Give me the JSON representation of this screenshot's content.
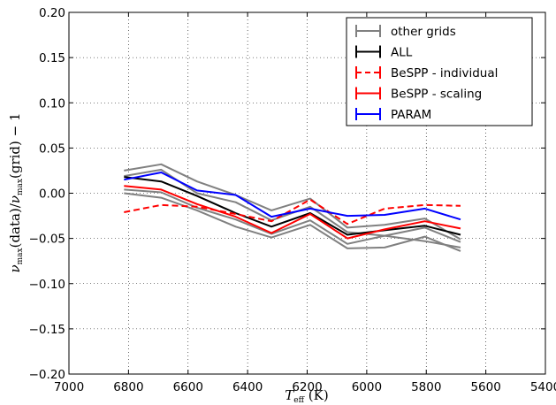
{
  "chart_data": {
    "type": "line",
    "title": "",
    "xlabel": "T_eff (K)",
    "ylabel": "ν_max(data)/ν_max(grid) − 1",
    "xlim": [
      7000,
      5400
    ],
    "ylim": [
      -0.2,
      0.2
    ],
    "x_inverted": true,
    "grid": true,
    "grid_style": "dotted",
    "legend_position": "top-right",
    "xticks": [
      7000,
      6800,
      6600,
      6400,
      6200,
      6000,
      5800,
      5600,
      5400
    ],
    "xtick_labels": [
      "7000",
      "6800",
      "6600",
      "6400",
      "6200",
      "6000",
      "5800",
      "5600",
      "5400"
    ],
    "yticks": [
      -0.2,
      -0.15,
      -0.1,
      -0.05,
      0.0,
      0.05,
      0.1,
      0.15,
      0.2
    ],
    "ytick_labels": [
      "−0.20",
      "−0.15",
      "−0.10",
      "−0.05",
      "0.00",
      "0.05",
      "0.10",
      "0.15",
      "0.20"
    ],
    "legend": [
      {
        "label": "other grids",
        "color": "#808080",
        "dashed": false
      },
      {
        "label": "ALL",
        "color": "#000000",
        "dashed": false
      },
      {
        "label": "BeSPP - individual",
        "color": "#ff0000",
        "dashed": true
      },
      {
        "label": "BeSPP - scaling",
        "color": "#ff0000",
        "dashed": false
      },
      {
        "label": "PARAM",
        "color": "#0000ff",
        "dashed": false
      }
    ],
    "series": [
      {
        "name": "other grids",
        "color": "#808080",
        "dashed": false,
        "x": [
          6815,
          6690,
          6570,
          6440,
          6320,
          6190,
          6065,
          5940,
          5805,
          5685
        ],
        "y": [
          0.025,
          0.032,
          0.013,
          -0.002,
          -0.019,
          -0.006,
          -0.038,
          -0.035,
          -0.028,
          -0.051
        ]
      },
      {
        "name": "other grids",
        "color": "#808080",
        "dashed": false,
        "x": [
          6815,
          6690,
          6570,
          6440,
          6320,
          6190,
          6065,
          5940,
          5805,
          5685
        ],
        "y": [
          0.004,
          0.001,
          -0.016,
          -0.029,
          -0.045,
          -0.03,
          -0.056,
          -0.047,
          -0.038,
          -0.054
        ]
      },
      {
        "name": "other grids",
        "color": "#808080",
        "dashed": false,
        "x": [
          6815,
          6690,
          6570,
          6440,
          6320,
          6190,
          6065,
          5940,
          5805,
          5685
        ],
        "y": [
          0.0,
          -0.005,
          -0.019,
          -0.037,
          -0.049,
          -0.035,
          -0.061,
          -0.06,
          -0.048,
          -0.064
        ]
      },
      {
        "name": "other grids",
        "color": "#808080",
        "dashed": false,
        "x": [
          6815,
          6690,
          6570,
          6440,
          6320,
          6190,
          6065,
          5940,
          5805,
          5685
        ],
        "y": [
          0.019,
          0.026,
          0.0,
          -0.01,
          -0.03,
          -0.015,
          -0.043,
          -0.047,
          -0.053,
          -0.06
        ]
      },
      {
        "name": "ALL",
        "color": "#000000",
        "dashed": false,
        "x": [
          6815,
          6690,
          6570,
          6440,
          6320,
          6190,
          6065,
          5940,
          5805,
          5685
        ],
        "y": [
          0.018,
          0.013,
          -0.003,
          -0.022,
          -0.037,
          -0.022,
          -0.046,
          -0.041,
          -0.036,
          -0.046
        ]
      },
      {
        "name": "BeSPP - individual",
        "color": "#ff0000",
        "dashed": true,
        "x": [
          6815,
          6690,
          6570,
          6440,
          6320,
          6190,
          6065,
          5940,
          5805,
          5685
        ],
        "y": [
          -0.021,
          -0.013,
          -0.015,
          -0.023,
          -0.031,
          -0.007,
          -0.034,
          -0.017,
          -0.013,
          -0.014
        ]
      },
      {
        "name": "BeSPP - scaling",
        "color": "#ff0000",
        "dashed": false,
        "x": [
          6815,
          6690,
          6570,
          6440,
          6320,
          6190,
          6065,
          5940,
          5805,
          5685
        ],
        "y": [
          0.008,
          0.004,
          -0.012,
          -0.026,
          -0.044,
          -0.023,
          -0.05,
          -0.04,
          -0.031,
          -0.039
        ]
      },
      {
        "name": "PARAM",
        "color": "#0000ff",
        "dashed": false,
        "x": [
          6815,
          6690,
          6570,
          6440,
          6320,
          6190,
          6065,
          5940,
          5805,
          5685
        ],
        "y": [
          0.015,
          0.023,
          0.003,
          -0.002,
          -0.026,
          -0.017,
          -0.025,
          -0.024,
          -0.017,
          -0.029
        ]
      }
    ]
  }
}
